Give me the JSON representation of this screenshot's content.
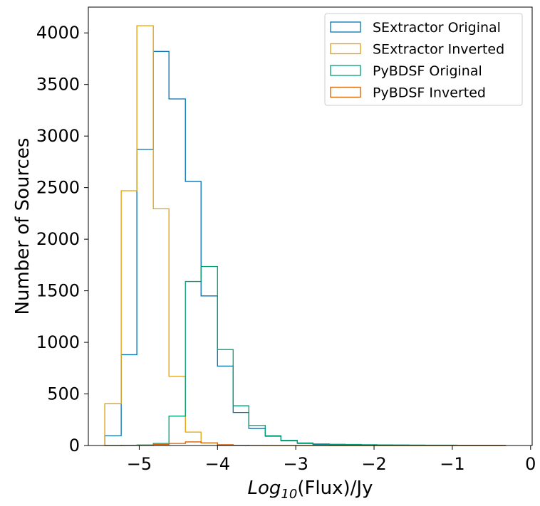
{
  "chart_data": {
    "type": "histogram",
    "title": "",
    "xlabel_main": "Log",
    "xlabel_sub": "10",
    "xlabel_rest": "(Flux)/Jy",
    "ylabel": "Number of Sources",
    "xlim": [
      -5.65,
      0.02
    ],
    "ylim": [
      0,
      4250
    ],
    "xticks": [
      -5,
      -4,
      -3,
      -2,
      -1,
      0
    ],
    "xtick_labels": [
      "−5",
      "−4",
      "−3",
      "−2",
      "−1",
      "0"
    ],
    "yticks": [
      0,
      500,
      1000,
      1500,
      2000,
      2500,
      3000,
      3500,
      4000
    ],
    "ytick_labels": [
      "0",
      "500",
      "1000",
      "1500",
      "2000",
      "2500",
      "3000",
      "3500",
      "4000"
    ],
    "grid": false,
    "legend_position": "top-right",
    "bin_edges": [
      -5.44,
      -5.23,
      -5.03,
      -4.82,
      -4.62,
      -4.41,
      -4.21,
      -4.0,
      -3.8,
      -3.6,
      -3.39,
      -3.19,
      -2.98,
      -2.78,
      -2.57,
      -2.37,
      -2.16,
      -1.96,
      -1.76,
      -1.55,
      -1.35,
      -1.14,
      -0.94,
      -0.73,
      -0.53,
      -0.32
    ],
    "series": [
      {
        "name": "SExtractor Original",
        "color": "#0072B2",
        "values": [
          95,
          880,
          2870,
          3820,
          3360,
          2560,
          1450,
          770,
          320,
          165,
          90,
          45,
          20,
          10,
          8,
          6,
          5,
          4,
          3,
          2,
          2,
          2,
          1,
          1,
          1
        ]
      },
      {
        "name": "SExtractor Inverted",
        "color": "#E69F00",
        "values": [
          405,
          2470,
          4070,
          2295,
          670,
          130,
          25,
          5,
          2,
          1,
          0,
          0,
          0,
          0,
          0,
          0,
          0,
          0,
          0,
          0,
          0,
          0,
          0,
          0,
          0
        ]
      },
      {
        "name": "PyBDSF Original",
        "color": "#009E73",
        "values": [
          0,
          2,
          5,
          20,
          285,
          1590,
          1735,
          930,
          385,
          195,
          95,
          50,
          25,
          15,
          12,
          10,
          8,
          6,
          5,
          4,
          3,
          3,
          2,
          2,
          2
        ]
      },
      {
        "name": "PyBDSF Inverted",
        "color": "#D55E00",
        "values": [
          0,
          1,
          3,
          10,
          20,
          35,
          25,
          8,
          2,
          0,
          0,
          0,
          0,
          0,
          0,
          0,
          0,
          0,
          0,
          0,
          0,
          0,
          0,
          0,
          0
        ]
      }
    ]
  }
}
